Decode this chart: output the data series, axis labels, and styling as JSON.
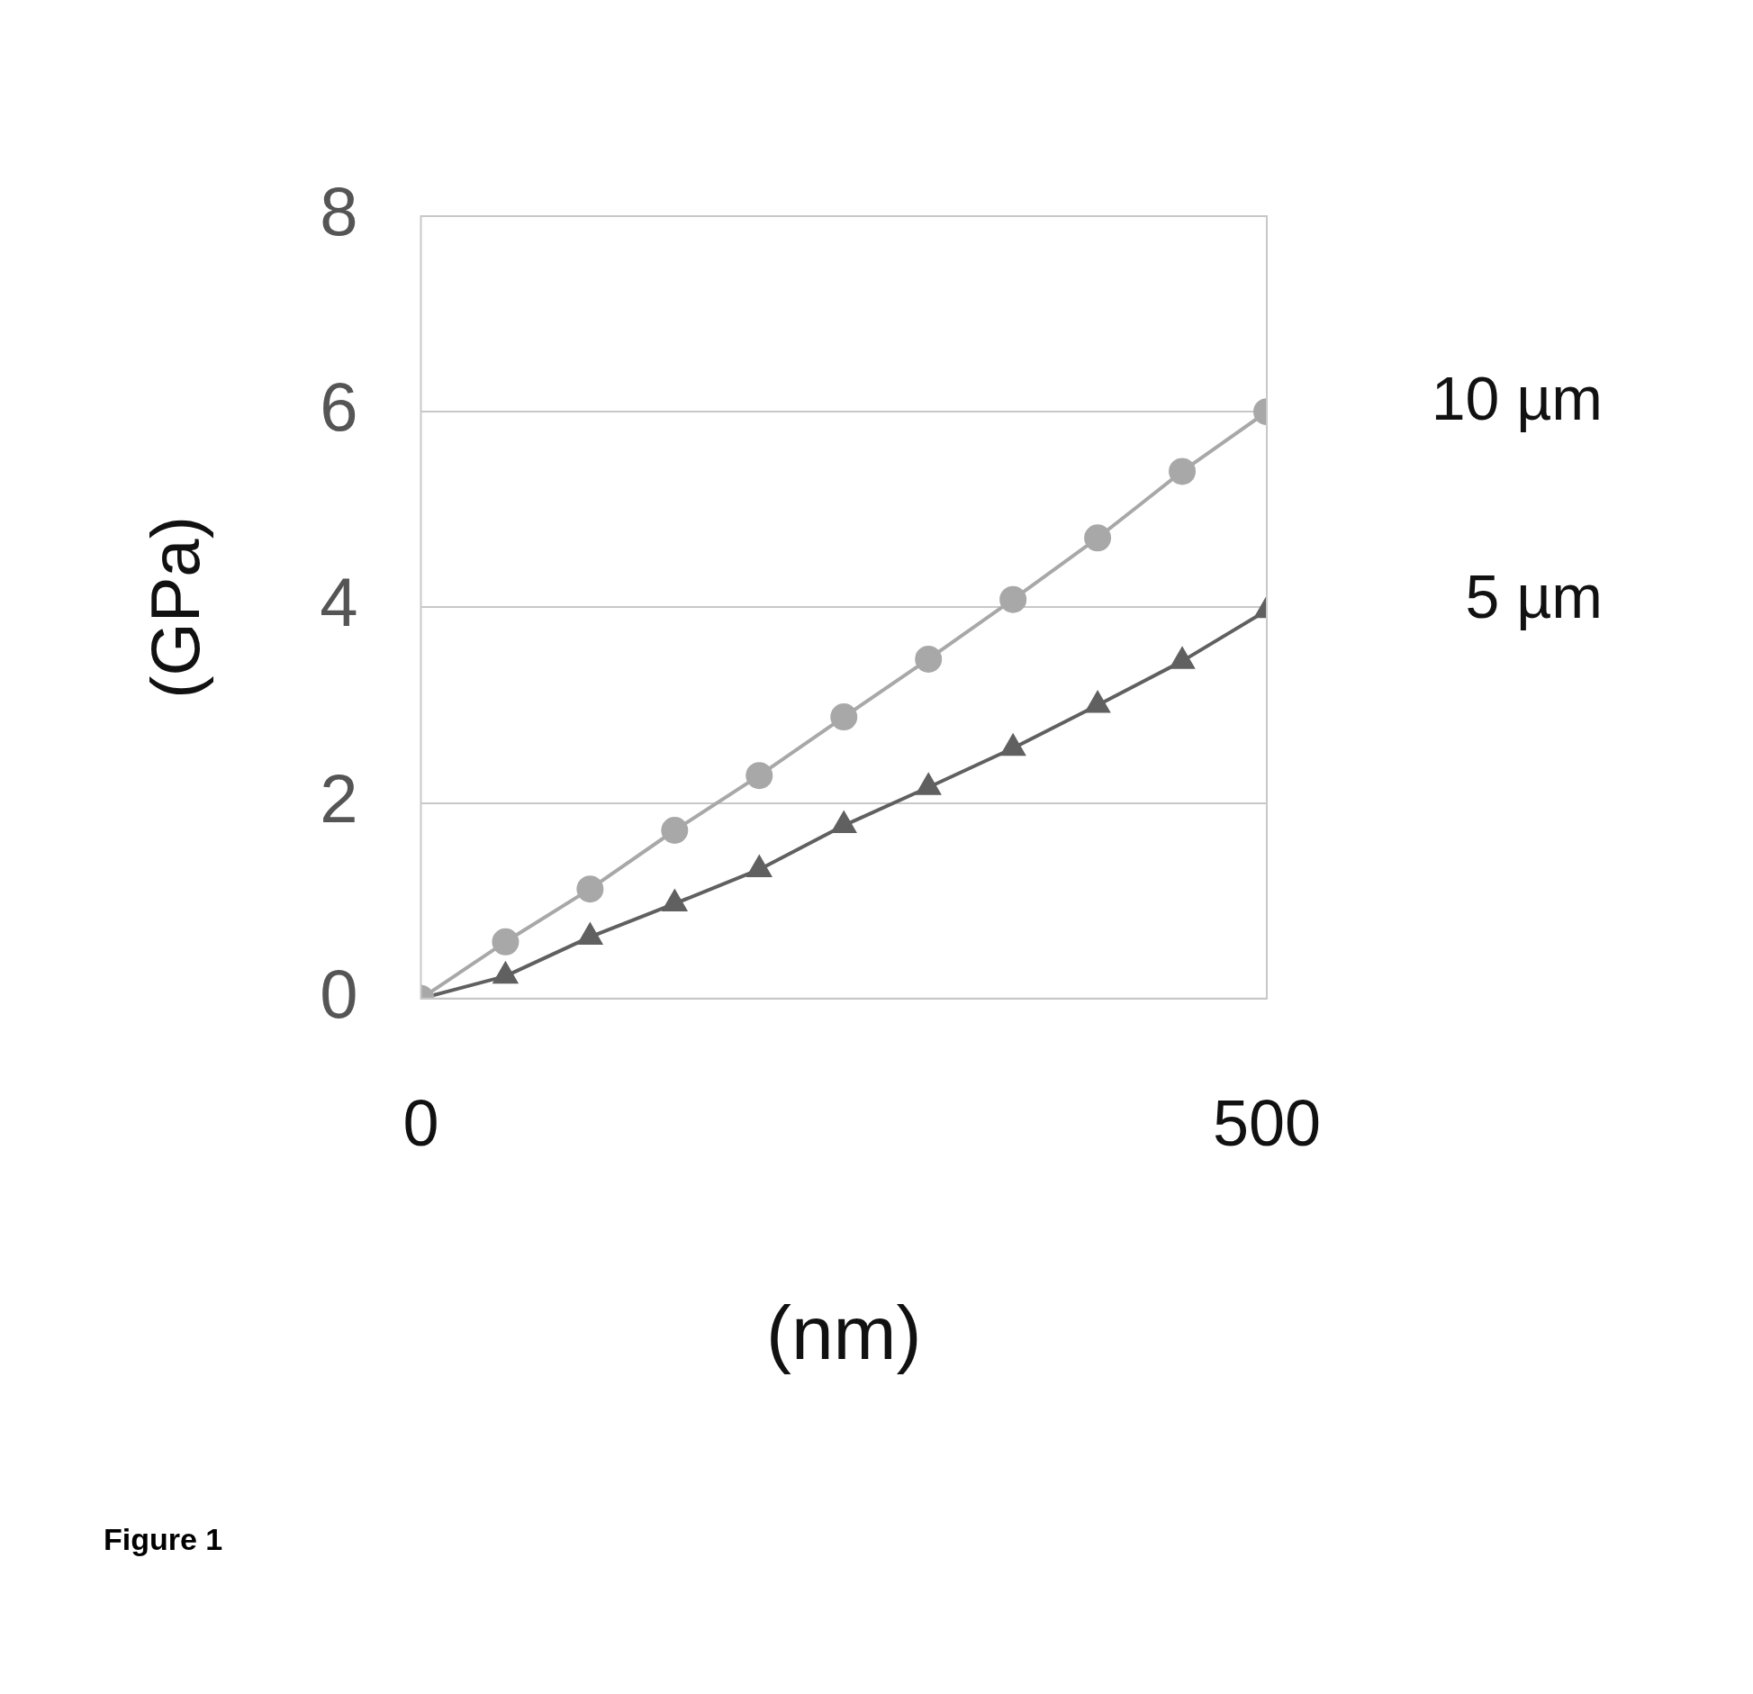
{
  "chart_data": {
    "type": "line",
    "xlabel": "(nm)",
    "ylabel": "(GPa)",
    "x": [
      0,
      50,
      100,
      150,
      200,
      250,
      300,
      350,
      400,
      450,
      500
    ],
    "series": [
      {
        "name": "10 µm",
        "color": "#a8a8a8",
        "marker": "circle",
        "values": [
          0,
          0.58,
          1.12,
          1.72,
          2.28,
          2.88,
          3.47,
          4.08,
          4.71,
          5.39,
          6.0
        ]
      },
      {
        "name": "5 µm",
        "color": "#606060",
        "marker": "triangle",
        "values": [
          0,
          0.23,
          0.63,
          0.97,
          1.32,
          1.77,
          2.16,
          2.56,
          3.0,
          3.45,
          3.97
        ]
      }
    ],
    "xlim": [
      0,
      500
    ],
    "xticks": [
      0,
      500
    ],
    "ylim": [
      0,
      8
    ],
    "yticks": [
      0,
      2,
      4,
      6,
      8
    ],
    "grid": "y",
    "legend": false,
    "annotations": [
      "Figure 1"
    ]
  }
}
